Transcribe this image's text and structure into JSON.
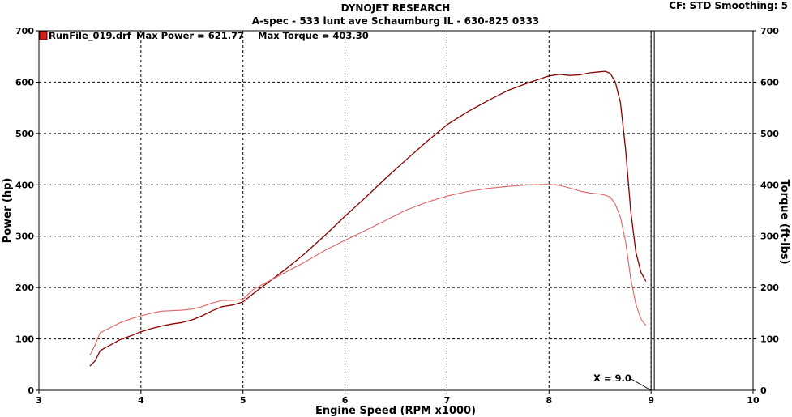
{
  "header": {
    "title": "DYNOJET RESEARCH",
    "subtitle": "A-spec - 533 lunt ave Schaumburg IL - 630-825 0333",
    "status": "CF: STD  Smoothing: 5"
  },
  "legend": {
    "run_file": "RunFile_019.drf",
    "max_power_text": "Max Power = 621.77",
    "max_torque_text": "Max Torque = 403.30"
  },
  "cursor": {
    "label": "X = 9.0",
    "x": 9.0
  },
  "colors": {
    "power": "#8b0000",
    "torque": "#e06565",
    "grid": "#000000",
    "background": "#ffffff"
  },
  "chart_data": {
    "type": "line",
    "xlabel": "Engine Speed (RPM x1000)",
    "ylabel": "Power (hp)",
    "y2label": "Torque (ft-lbs)",
    "xlim": [
      3,
      10
    ],
    "ylim": [
      0,
      700
    ],
    "y2lim": [
      0,
      700
    ],
    "xticks": [
      3,
      4,
      5,
      6,
      7,
      8,
      9,
      10
    ],
    "yticks": [
      0,
      100,
      200,
      300,
      400,
      500,
      600,
      700
    ],
    "y2ticks": [
      0,
      100,
      200,
      300,
      400,
      500,
      600,
      700
    ],
    "grid": true,
    "series": [
      {
        "name": "Max Power = 621.77",
        "axis": "left",
        "x": [
          3.5,
          3.55,
          3.6,
          3.65,
          3.7,
          3.8,
          3.9,
          4.0,
          4.1,
          4.2,
          4.3,
          4.4,
          4.5,
          4.6,
          4.7,
          4.8,
          4.9,
          5.0,
          5.1,
          5.2,
          5.4,
          5.6,
          5.8,
          6.0,
          6.2,
          6.4,
          6.6,
          6.8,
          7.0,
          7.2,
          7.4,
          7.6,
          7.8,
          8.0,
          8.1,
          8.2,
          8.3,
          8.4,
          8.5,
          8.55,
          8.6,
          8.65,
          8.7,
          8.75,
          8.8,
          8.85,
          8.9,
          8.95
        ],
        "values": [
          47,
          57,
          77,
          83,
          88,
          99,
          106,
          114,
          120,
          125,
          129,
          132,
          137,
          145,
          155,
          163,
          166,
          172,
          188,
          203,
          233,
          265,
          301,
          339,
          375,
          413,
          449,
          484,
          517,
          542,
          564,
          584,
          599,
          612,
          615,
          613,
          614,
          618,
          620,
          621,
          617,
          600,
          560,
          470,
          350,
          270,
          230,
          212
        ]
      },
      {
        "name": "Max Torque = 403.30",
        "axis": "right",
        "x": [
          3.5,
          3.55,
          3.6,
          3.65,
          3.7,
          3.8,
          3.9,
          4.0,
          4.1,
          4.2,
          4.3,
          4.4,
          4.5,
          4.6,
          4.7,
          4.8,
          4.9,
          5.0,
          5.1,
          5.2,
          5.4,
          5.6,
          5.8,
          6.0,
          6.2,
          6.4,
          6.6,
          6.8,
          7.0,
          7.2,
          7.4,
          7.6,
          7.8,
          8.0,
          8.1,
          8.2,
          8.3,
          8.4,
          8.5,
          8.55,
          8.6,
          8.65,
          8.7,
          8.75,
          8.8,
          8.85,
          8.9,
          8.95
        ],
        "values": [
          68,
          88,
          112,
          117,
          122,
          132,
          139,
          145,
          150,
          154,
          155,
          156,
          158,
          163,
          170,
          175,
          175,
          177,
          196,
          207,
          228,
          249,
          272,
          292,
          311,
          331,
          351,
          366,
          378,
          387,
          393,
          397,
          400,
          401,
          399,
          394,
          388,
          384,
          382,
          380,
          376,
          362,
          337,
          290,
          218,
          168,
          139,
          126
        ]
      }
    ]
  }
}
